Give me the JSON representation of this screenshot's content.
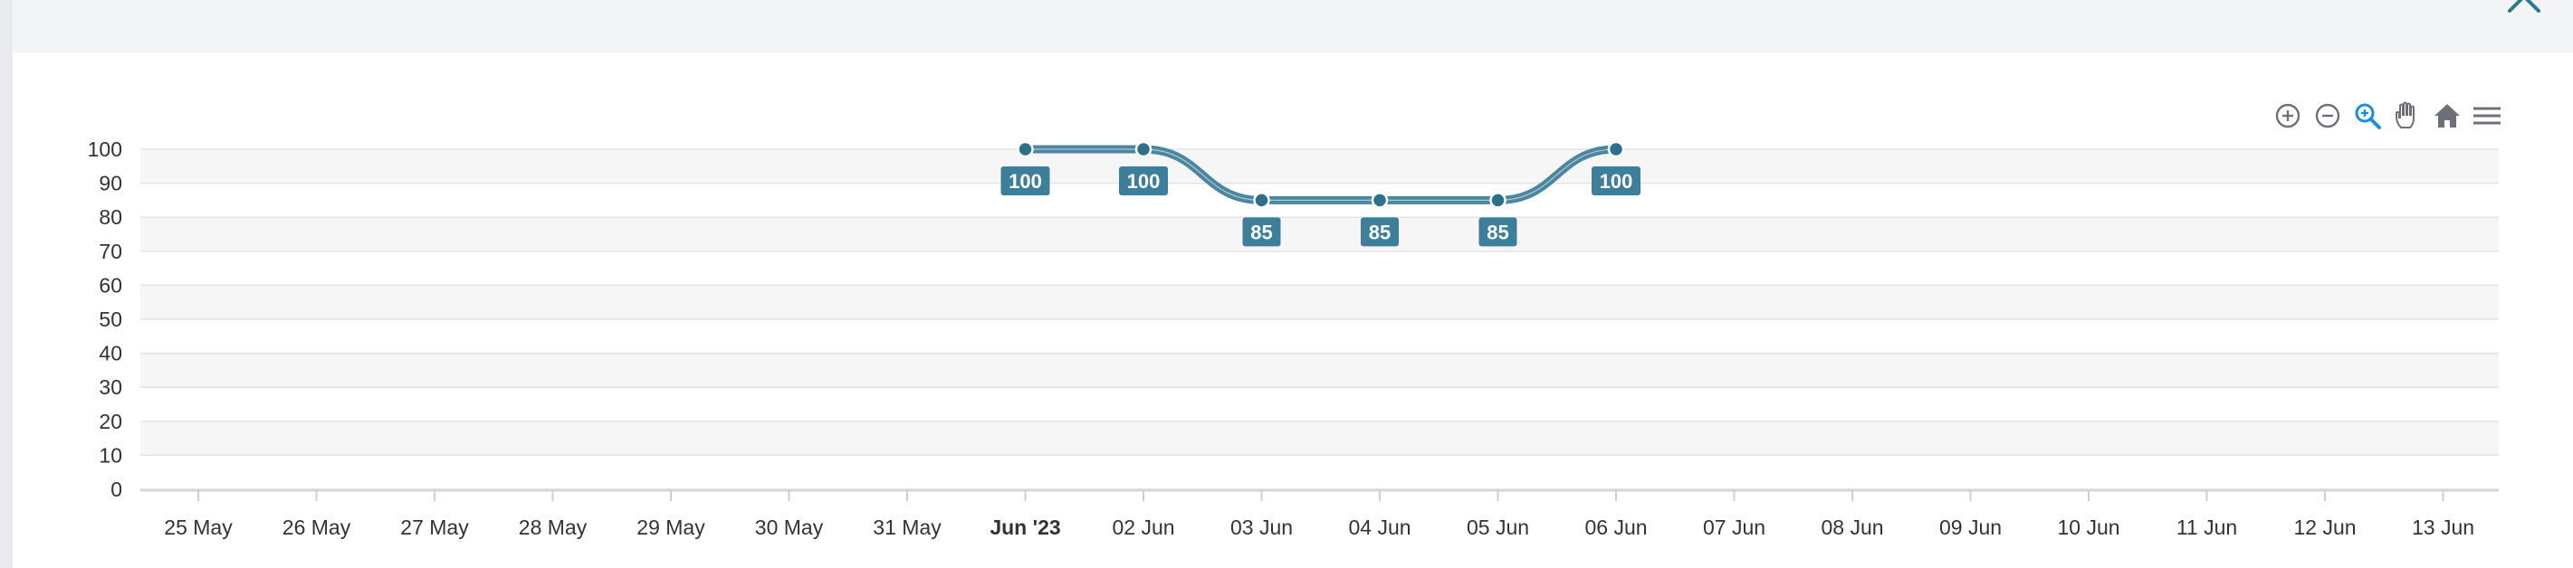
{
  "colors": {
    "series": "#4a86a0",
    "label_bg": "#3d7f9a",
    "toolbar_icon": "#6e7079",
    "toolbar_active": "#1d8ce0",
    "close": "#2b7a8a"
  },
  "toolbar": {
    "icons": [
      "zoom-in-icon",
      "zoom-out-icon",
      "selection-zoom-icon",
      "pan-icon",
      "reset-home-icon",
      "menu-icon"
    ]
  },
  "chart_data": {
    "type": "line",
    "x_axis_type": "datetime",
    "categories": [
      "25 May",
      "26 May",
      "27 May",
      "28 May",
      "29 May",
      "30 May",
      "31 May",
      "Jun '23",
      "02 Jun",
      "03 Jun",
      "04 Jun",
      "05 Jun",
      "06 Jun",
      "07 Jun",
      "08 Jun",
      "09 Jun",
      "10 Jun",
      "11 Jun",
      "12 Jun",
      "13 Jun"
    ],
    "bold_categories": [
      "Jun '23"
    ],
    "series": [
      {
        "points": [
          {
            "x": "Jun '23",
            "y": 100
          },
          {
            "x": "02 Jun",
            "y": 100
          },
          {
            "x": "03 Jun",
            "y": 85
          },
          {
            "x": "04 Jun",
            "y": 85
          },
          {
            "x": "05 Jun",
            "y": 85
          },
          {
            "x": "06 Jun",
            "y": 100
          }
        ],
        "data_labels": [
          "100",
          "100",
          "85",
          "85",
          "85",
          "100"
        ]
      }
    ],
    "y_ticks": [
      "100",
      "90",
      "80",
      "70",
      "60",
      "50",
      "40",
      "30",
      "20",
      "10",
      "0"
    ],
    "ylim": [
      0,
      100
    ],
    "grid": true,
    "striped_rows": true,
    "curve": "smooth"
  }
}
